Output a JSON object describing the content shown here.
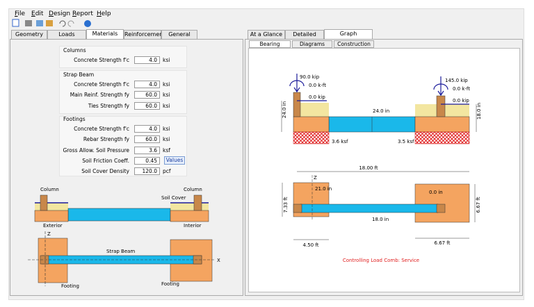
{
  "menu": {
    "file": "File",
    "edit": "Edit",
    "design": "Design",
    "report": "Report",
    "help": "Help"
  },
  "left_tabs": {
    "geometry": "Geometry",
    "loads": "Loads",
    "materials": "Materials",
    "reinforcement": "Reinforcement",
    "general": "General"
  },
  "materials": {
    "columns": {
      "title": "Columns",
      "concrete_strength": {
        "label": "Concrete Strength  f'c",
        "value": "4.0",
        "unit": "ksi"
      }
    },
    "strap_beam": {
      "title": "Strap Beam",
      "concrete_strength": {
        "label": "Concrete Strength  f'c",
        "value": "4.0",
        "unit": "ksi"
      },
      "main_reinf_strength": {
        "label": "Main Reinf. Strength  fy",
        "value": "60.0",
        "unit": "ksi"
      },
      "ties_strength": {
        "label": "Ties Strength  fy",
        "value": "60.0",
        "unit": "ksi"
      }
    },
    "footings": {
      "title": "Footings",
      "concrete_strength": {
        "label": "Concrete Strength  f'c",
        "value": "4.0",
        "unit": "ksi"
      },
      "rebar_strength": {
        "label": "Rebar Strength  fy",
        "value": "60.0",
        "unit": "ksi"
      },
      "soil_pressure": {
        "label": "Gross Allow. Soil Pressure",
        "value": "3.6",
        "unit": "ksf"
      },
      "soil_friction": {
        "label": "Soil Friction Coeff.",
        "value": "0.45",
        "button": "Values"
      },
      "soil_cover_density": {
        "label": "Soil Cover Density",
        "value": "120.0",
        "unit": "pcf"
      }
    }
  },
  "sketch": {
    "elevation": {
      "column_left": "Column",
      "column_right": "Column",
      "soil_cover": "Soil Cover",
      "exterior": "Exterior",
      "interior": "Interior"
    },
    "plan": {
      "z_axis": "Z",
      "x_axis": "X",
      "strap_beam": "Strap Beam",
      "footing_left": "Footing",
      "footing_right": "Footing"
    }
  },
  "right_tabs": {
    "at_a_glance": "At a Glance",
    "detailed": "Detailed",
    "graph": "Graph"
  },
  "graph_tabs": {
    "bearing": "Bearing",
    "diagrams": "Diagrams",
    "construction": "Construction"
  },
  "bearing": {
    "elevation": {
      "left_axial": "90.0 kip",
      "left_moment": "0.0 k-ft",
      "left_shear": "0.0 kip",
      "right_axial": "145.0 kip",
      "right_moment": "0.0 k-ft",
      "right_shear": "0.0 kip",
      "footing_depth": "24.0 in",
      "beam_depth": "24.0 in",
      "right_depth": "18.0 in",
      "left_pressure": "3.6 ksf",
      "right_pressure": "3.5 ksf"
    },
    "plan": {
      "span": "18.00 ft",
      "z_axis": "Z",
      "left_offset": "21.0 in",
      "right_offset": "0.0 in",
      "left_length": "7.33 ft",
      "right_length": "6.67 ft",
      "beam_width": "18.0 in",
      "left_width": "4.50 ft",
      "right_width": "6.67 ft"
    },
    "controlling": "Controlling Load Comb: Service"
  }
}
